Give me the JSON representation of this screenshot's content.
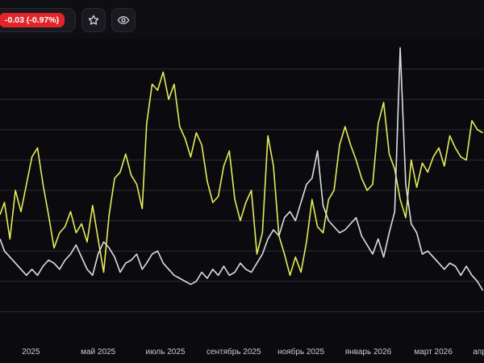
{
  "header": {
    "change_text": "-0.03 (-0.97%)",
    "change_color": "#e0262b",
    "star_icon": "star-icon",
    "watch_icon": "eye-icon"
  },
  "chart_data": {
    "type": "line",
    "grid": true,
    "legend": "none",
    "x_tick_labels": [
      "2025",
      "май 2025",
      "июль 2025",
      "сентябрь 2025",
      "ноябрь 2025",
      "январь 2026",
      "март 2026",
      "апр"
    ],
    "x_tick_dates": [
      "2025-03-01",
      "2025-05-01",
      "2025-07-01",
      "2025-09-01",
      "2025-11-01",
      "2026-01-01",
      "2026-03-01",
      "2026-04-12"
    ],
    "x_range": [
      "2025-02-01",
      "2026-04-16"
    ],
    "ylim": [
      0,
      10
    ],
    "y_gridlines": [
      1,
      2,
      3,
      4,
      5,
      6,
      7,
      8,
      9
    ],
    "series": [
      {
        "color": "#e4eb5a",
        "x": [
          "2025-02-01",
          "2025-02-05",
          "2025-02-10",
          "2025-02-15",
          "2025-02-20",
          "2025-02-25",
          "2025-03-02",
          "2025-03-07",
          "2025-03-12",
          "2025-03-17",
          "2025-03-22",
          "2025-03-27",
          "2025-04-01",
          "2025-04-06",
          "2025-04-11",
          "2025-04-16",
          "2025-04-21",
          "2025-04-26",
          "2025-05-01",
          "2025-05-06",
          "2025-05-11",
          "2025-05-16",
          "2025-05-21",
          "2025-05-26",
          "2025-05-31",
          "2025-06-05",
          "2025-06-10",
          "2025-06-14",
          "2025-06-19",
          "2025-06-24",
          "2025-06-29",
          "2025-07-04",
          "2025-07-09",
          "2025-07-14",
          "2025-07-19",
          "2025-07-24",
          "2025-07-29",
          "2025-08-03",
          "2025-08-08",
          "2025-08-13",
          "2025-08-18",
          "2025-08-23",
          "2025-08-28",
          "2025-09-02",
          "2025-09-07",
          "2025-09-12",
          "2025-09-17",
          "2025-09-22",
          "2025-09-27",
          "2025-10-02",
          "2025-10-07",
          "2025-10-12",
          "2025-10-17",
          "2025-10-22",
          "2025-10-27",
          "2025-11-01",
          "2025-11-06",
          "2025-11-11",
          "2025-11-16",
          "2025-11-21",
          "2025-11-26",
          "2025-12-01",
          "2025-12-06",
          "2025-12-11",
          "2025-12-16",
          "2025-12-21",
          "2025-12-26",
          "2025-12-31",
          "2026-01-05",
          "2026-01-10",
          "2026-01-15",
          "2026-01-20",
          "2026-01-25",
          "2026-01-30",
          "2026-02-04",
          "2026-02-09",
          "2026-02-14",
          "2026-02-19",
          "2026-02-24",
          "2026-03-01",
          "2026-03-06",
          "2026-03-11",
          "2026-03-16",
          "2026-03-21",
          "2026-03-26",
          "2026-03-31",
          "2026-04-05",
          "2026-04-10",
          "2026-04-15"
        ],
        "y": [
          4.2,
          4.6,
          3.4,
          5.0,
          4.3,
          5.2,
          6.1,
          6.4,
          5.2,
          4.2,
          3.1,
          3.6,
          3.8,
          4.3,
          3.6,
          3.9,
          3.3,
          4.5,
          3.4,
          2.3,
          4.2,
          5.4,
          5.6,
          6.2,
          5.5,
          5.2,
          4.4,
          7.2,
          8.5,
          8.3,
          8.9,
          8.0,
          8.5,
          7.1,
          6.7,
          6.1,
          6.9,
          6.5,
          5.3,
          4.6,
          4.8,
          5.8,
          6.3,
          4.7,
          4.0,
          4.6,
          5.0,
          2.9,
          3.6,
          6.8,
          5.8,
          3.5,
          2.9,
          2.2,
          2.8,
          2.3,
          3.3,
          4.7,
          3.8,
          3.6,
          4.7,
          5.0,
          6.5,
          7.1,
          6.5,
          6.0,
          5.4,
          5.0,
          5.2,
          7.2,
          7.9,
          6.2,
          5.7,
          4.7,
          4.1,
          6.0,
          5.1,
          5.9,
          5.6,
          6.1,
          6.4,
          5.8,
          6.8,
          6.4,
          6.1,
          6.0,
          7.3,
          7.0,
          6.9
        ]
      },
      {
        "color": "#dcdce6",
        "x": [
          "2025-02-01",
          "2025-02-05",
          "2025-02-10",
          "2025-02-15",
          "2025-02-20",
          "2025-02-25",
          "2025-03-02",
          "2025-03-07",
          "2025-03-12",
          "2025-03-17",
          "2025-03-22",
          "2025-03-27",
          "2025-04-01",
          "2025-04-06",
          "2025-04-11",
          "2025-04-16",
          "2025-04-21",
          "2025-04-26",
          "2025-05-01",
          "2025-05-06",
          "2025-05-11",
          "2025-05-16",
          "2025-05-21",
          "2025-05-26",
          "2025-05-31",
          "2025-06-05",
          "2025-06-10",
          "2025-06-14",
          "2025-06-19",
          "2025-06-24",
          "2025-06-29",
          "2025-07-04",
          "2025-07-09",
          "2025-07-14",
          "2025-07-19",
          "2025-07-24",
          "2025-07-29",
          "2025-08-03",
          "2025-08-08",
          "2025-08-13",
          "2025-08-18",
          "2025-08-23",
          "2025-08-28",
          "2025-09-02",
          "2025-09-07",
          "2025-09-12",
          "2025-09-17",
          "2025-09-22",
          "2025-09-27",
          "2025-10-02",
          "2025-10-07",
          "2025-10-12",
          "2025-10-17",
          "2025-10-22",
          "2025-10-27",
          "2025-11-01",
          "2025-11-06",
          "2025-11-11",
          "2025-11-16",
          "2025-11-21",
          "2025-11-26",
          "2025-12-01",
          "2025-12-06",
          "2025-12-11",
          "2025-12-16",
          "2025-12-21",
          "2025-12-26",
          "2025-12-31",
          "2026-01-05",
          "2026-01-10",
          "2026-01-15",
          "2026-01-20",
          "2026-01-25",
          "2026-01-30",
          "2026-02-04",
          "2026-02-09",
          "2026-02-14",
          "2026-02-19",
          "2026-02-24",
          "2026-03-01",
          "2026-03-06",
          "2026-03-11",
          "2026-03-16",
          "2026-03-21",
          "2026-03-26",
          "2026-03-31",
          "2026-04-05",
          "2026-04-10",
          "2026-04-15"
        ],
        "y": [
          3.4,
          3.0,
          2.8,
          2.6,
          2.4,
          2.2,
          2.4,
          2.2,
          2.5,
          2.7,
          2.6,
          2.4,
          2.7,
          2.9,
          3.2,
          2.8,
          2.4,
          2.2,
          2.9,
          3.3,
          3.1,
          2.8,
          2.3,
          2.6,
          2.7,
          2.9,
          2.4,
          2.6,
          2.9,
          3.0,
          2.6,
          2.4,
          2.2,
          2.1,
          2.0,
          1.9,
          2.0,
          2.3,
          2.1,
          2.4,
          2.2,
          2.5,
          2.2,
          2.3,
          2.6,
          2.4,
          2.3,
          2.6,
          2.9,
          3.4,
          3.7,
          3.5,
          4.1,
          4.3,
          4.0,
          4.6,
          5.2,
          5.4,
          6.3,
          4.5,
          4.0,
          3.8,
          3.6,
          3.7,
          3.9,
          4.1,
          3.5,
          3.2,
          2.9,
          3.4,
          2.8,
          3.6,
          4.3,
          9.7,
          5.2,
          3.9,
          3.6,
          2.9,
          3.0,
          2.8,
          2.6,
          2.4,
          2.6,
          2.5,
          2.2,
          2.5,
          2.2,
          2.0,
          1.7
        ]
      }
    ]
  }
}
